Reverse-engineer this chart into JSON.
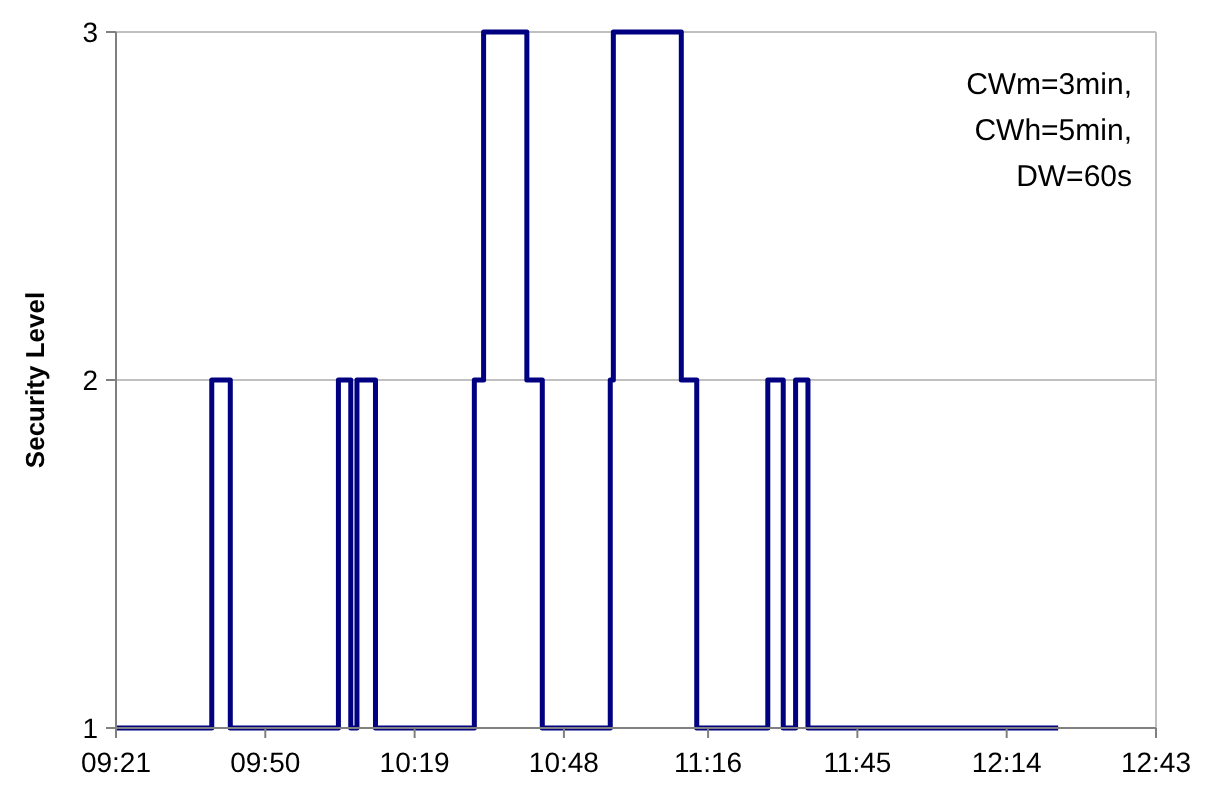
{
  "chart_data": {
    "type": "step",
    "ylabel": "Security Level",
    "annotations": [
      "CWm=3min,\nCWh=5min,\nDW=60s"
    ],
    "x": [
      9.35,
      9.66,
      9.72,
      10.07,
      10.11,
      10.13,
      10.19,
      10.51,
      10.54,
      10.68,
      10.73,
      10.95,
      10.96,
      11.18,
      11.23,
      11.46,
      11.51,
      11.55,
      11.59,
      12.4
    ],
    "series": [
      {
        "color": "#000080",
        "values": [
          1,
          2,
          1,
          2,
          1,
          2,
          1,
          2,
          3,
          2,
          1,
          2,
          3,
          2,
          1,
          2,
          1,
          2,
          1,
          1
        ]
      }
    ],
    "xlim": [
      9.35,
      12.7167
    ],
    "xticks": [
      {
        "value": 9.35,
        "label": "09:21"
      },
      {
        "value": 9.8333,
        "label": "09:50"
      },
      {
        "value": 10.3167,
        "label": "10:19"
      },
      {
        "value": 10.8,
        "label": "10:48"
      },
      {
        "value": 11.2667,
        "label": "11:16"
      },
      {
        "value": 11.75,
        "label": "11:45"
      },
      {
        "value": 12.2333,
        "label": "12:14"
      },
      {
        "value": 12.7167,
        "label": "12:43"
      }
    ],
    "ylim": [
      1,
      3
    ],
    "yticks": [
      1,
      2,
      3
    ],
    "grid": "y",
    "marker": "none",
    "line_style": "solid"
  }
}
